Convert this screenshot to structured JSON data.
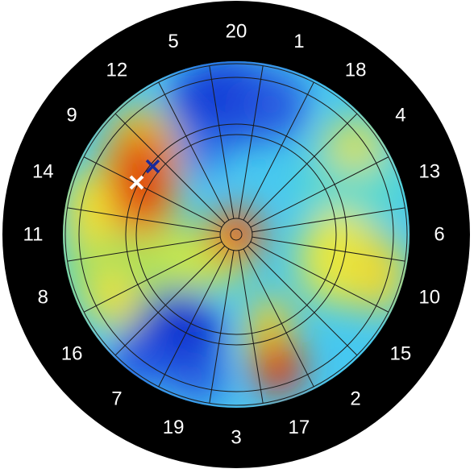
{
  "board": {
    "sector_numbers": [
      "20",
      "1",
      "18",
      "4",
      "13",
      "6",
      "10",
      "15",
      "2",
      "17",
      "3",
      "19",
      "7",
      "16",
      "8",
      "11",
      "14",
      "9",
      "12",
      "5"
    ],
    "colors": {
      "surround": "#000000",
      "number_text": "#ffffff",
      "wire": "#1a1a1a",
      "heat_low": "#0000c8",
      "heat_mid": "#ffff00",
      "heat_high": "#cc0000"
    }
  },
  "markers": [
    {
      "name": "blue-cross-marker",
      "symbol": "x",
      "color": "#1a2a9a"
    },
    {
      "name": "white-cross-marker",
      "symbol": "x",
      "color": "#ffffff"
    }
  ]
}
